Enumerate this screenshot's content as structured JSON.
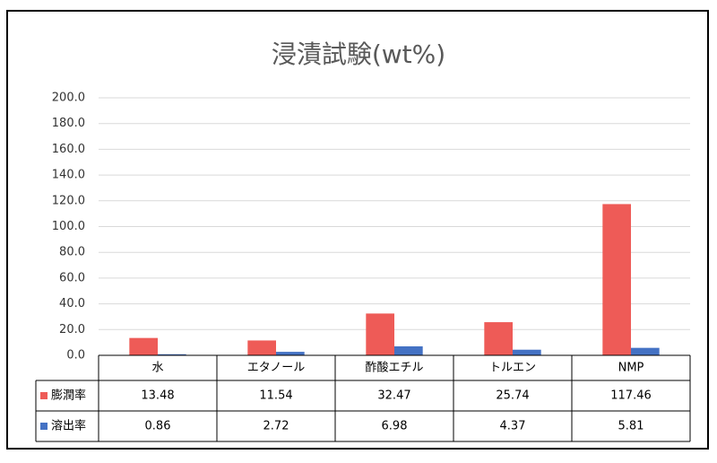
{
  "chart_data": {
    "type": "bar",
    "title": "浸漬試験(wt%)",
    "categories": [
      "水",
      "エタノール",
      "酢酸エチル",
      "トルエン",
      "NMP"
    ],
    "series": [
      {
        "name": "膨潤率",
        "color": "#ee5b57",
        "values": [
          13.48,
          11.54,
          32.47,
          25.74,
          117.46
        ]
      },
      {
        "name": "溶出率",
        "color": "#4472c4",
        "values": [
          0.86,
          2.72,
          6.98,
          4.37,
          5.81
        ]
      }
    ],
    "ylim": [
      0,
      200
    ],
    "yticks": [
      {
        "value": 0,
        "label": "0.0"
      },
      {
        "value": 20,
        "label": "20.0"
      },
      {
        "value": 40,
        "label": "40.0"
      },
      {
        "value": 60,
        "label": "60.0"
      },
      {
        "value": 80,
        "label": "80.0"
      },
      {
        "value": 100,
        "label": "100.0"
      },
      {
        "value": 120,
        "label": "120.0"
      },
      {
        "value": 140,
        "label": "140.0"
      },
      {
        "value": 160,
        "label": "160.0"
      },
      {
        "value": 180,
        "label": "180.0"
      },
      {
        "value": 200,
        "label": "200.0"
      }
    ],
    "grid": true,
    "data_table": true
  }
}
